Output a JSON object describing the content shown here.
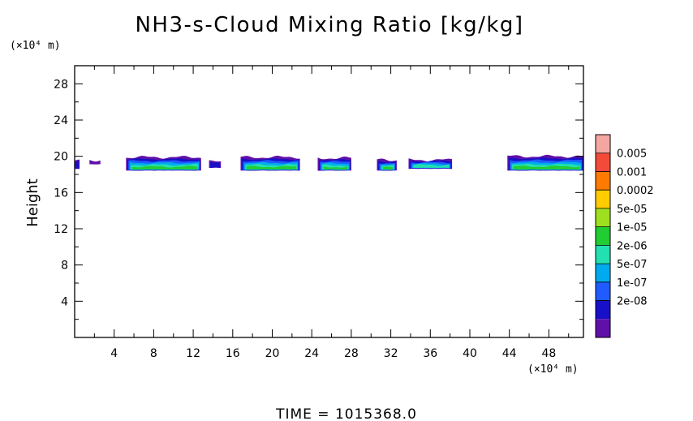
{
  "chart_data": {
    "type": "contour",
    "title": "NH3-s-Cloud Mixing Ratio [kg/kg]",
    "ylabel": "Height",
    "y_unit": "(×10⁴ m)",
    "x_unit": "(×10⁴ m)",
    "xlim": [
      0,
      51.5
    ],
    "ylim": [
      0,
      30
    ],
    "x_ticks": [
      "4",
      "8",
      "12",
      "16",
      "20",
      "24",
      "28",
      "32",
      "36",
      "40",
      "44",
      "48"
    ],
    "y_ticks": [
      "4",
      "8",
      "12",
      "16",
      "20",
      "24",
      "28"
    ],
    "time_label": "TIME  =  1015368.0",
    "legend": {
      "labels": [
        "0.005",
        "0.001",
        "0.0002",
        "5e-05",
        "1e-05",
        "2e-06",
        "5e-07",
        "1e-07",
        "2e-08"
      ],
      "colors": [
        "#f4a6a0",
        "#f44a3a",
        "#ff7a00",
        "#ffcc00",
        "#9ee020",
        "#22cc33",
        "#22e0b0",
        "#00aaee",
        "#1f5bff",
        "#1810c8",
        "#6010a8"
      ]
    },
    "cloud_patches": [
      {
        "x0": 0.0,
        "x1": 0.5,
        "y_base": 18.6,
        "y_top": 19.5,
        "peak": 1
      },
      {
        "x0": 1.5,
        "x1": 2.6,
        "y_base": 19.1,
        "y_top": 19.6,
        "peak": 0
      },
      {
        "x0": 5.2,
        "x1": 12.8,
        "y_base": 18.4,
        "y_top": 19.9,
        "peak": 5
      },
      {
        "x0": 13.6,
        "x1": 14.8,
        "y_base": 18.7,
        "y_top": 19.4,
        "peak": 1
      },
      {
        "x0": 16.8,
        "x1": 22.8,
        "y_base": 18.4,
        "y_top": 19.9,
        "peak": 5
      },
      {
        "x0": 24.6,
        "x1": 28.0,
        "y_base": 18.4,
        "y_top": 19.8,
        "peak": 5
      },
      {
        "x0": 30.6,
        "x1": 32.6,
        "y_base": 18.4,
        "y_top": 19.6,
        "peak": 5
      },
      {
        "x0": 33.8,
        "x1": 38.2,
        "y_base": 18.6,
        "y_top": 19.6,
        "peak": 4
      },
      {
        "x0": 43.8,
        "x1": 51.5,
        "y_base": 18.4,
        "y_top": 20.0,
        "peak": 5
      }
    ]
  }
}
